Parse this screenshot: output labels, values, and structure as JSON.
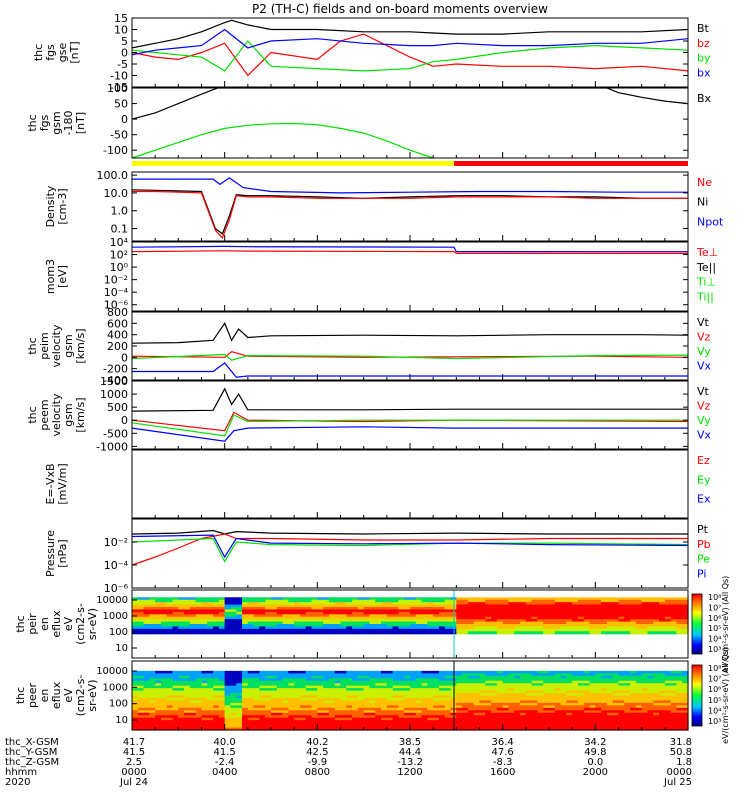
{
  "title": "P2 (TH-C) fields and on-board moments overview",
  "colors": {
    "black": "#000000",
    "red": "#ff0000",
    "green": "#00e000",
    "blue": "#0000ff",
    "yellow": "#ffff00",
    "cyan": "#00c8c8"
  },
  "chart_data": [
    {
      "type": "line",
      "id": "fgs",
      "ylabel": [
        "thc",
        "fgs",
        "gse",
        "[nT]"
      ],
      "ylim": [
        -15,
        15
      ],
      "ticks": [
        15,
        10,
        5,
        0,
        -5,
        -10,
        -15
      ],
      "legend": [
        {
          "name": "Bt",
          "color": "#000000"
        },
        {
          "name": "bz",
          "color": "#ff0000"
        },
        {
          "name": "by",
          "color": "#00e000"
        },
        {
          "name": "bx",
          "color": "#0000ff"
        }
      ],
      "series": [
        {
          "name": "Bt",
          "x": [
            0,
            1,
            2,
            3,
            4,
            4.3,
            5,
            6,
            8,
            10,
            12,
            13,
            14,
            16,
            18,
            20,
            22,
            24
          ],
          "y": [
            2,
            4,
            6,
            9,
            13,
            14,
            12,
            10,
            10,
            9,
            9,
            8.5,
            8,
            8,
            9,
            9,
            9,
            10
          ]
        },
        {
          "name": "bz",
          "x": [
            0,
            1,
            2,
            3,
            4,
            5,
            6,
            8,
            9,
            10,
            12,
            13,
            14,
            16,
            18,
            20,
            22,
            24
          ],
          "y": [
            0,
            -2,
            -3,
            0,
            4,
            -10,
            0,
            -3,
            5,
            8,
            -2,
            -6,
            -5,
            -6,
            -6,
            -7,
            -6,
            -8
          ]
        },
        {
          "name": "by",
          "x": [
            0,
            1,
            2,
            3,
            4,
            5,
            6,
            8,
            10,
            12,
            13,
            14,
            16,
            18,
            20,
            22,
            24
          ],
          "y": [
            1,
            0,
            -1,
            -2,
            -8,
            5,
            -6,
            -7,
            -8,
            -7,
            -4,
            -3,
            0,
            2,
            3,
            2,
            1
          ]
        },
        {
          "name": "bx",
          "x": [
            0,
            1,
            2,
            3,
            4,
            5,
            6,
            8,
            10,
            12,
            13,
            14,
            16,
            18,
            20,
            22,
            24
          ],
          "y": [
            -1,
            1,
            2,
            3,
            10,
            2,
            5,
            6,
            4,
            3,
            3,
            4,
            3,
            3,
            4,
            4,
            6
          ]
        }
      ]
    },
    {
      "type": "line",
      "id": "fgs_gsm",
      "ylabel": [
        "thc",
        "fgs",
        "gsm",
        "-180",
        "[nT]"
      ],
      "ylim": [
        -125,
        100
      ],
      "ticks": [
        100,
        50,
        0,
        -50,
        -100
      ],
      "legend": [
        {
          "name": "Bx",
          "color": "#000000"
        }
      ],
      "series": [
        {
          "name": "Bx",
          "x": [
            0,
            1,
            2,
            3,
            3.7,
            20.5,
            21,
            22,
            23,
            24
          ],
          "y": [
            0,
            20,
            50,
            80,
            100,
            100,
            85,
            70,
            58,
            50
          ]
        },
        {
          "name": "By",
          "x": [
            0,
            1,
            2,
            3,
            4,
            5,
            6,
            7,
            8,
            9,
            10,
            11,
            12,
            13
          ],
          "y": [
            -125,
            -100,
            -75,
            -50,
            -30,
            -20,
            -15,
            -14,
            -18,
            -30,
            -45,
            -70,
            -100,
            -125
          ]
        }
      ]
    },
    {
      "type": "line",
      "id": "density",
      "ylabel": [
        "Density",
        "[cm-3]"
      ],
      "log": true,
      "ylim": [
        0.02,
        150
      ],
      "ticks": [
        "100.0",
        "10.0",
        "1.0",
        "0.1"
      ],
      "tick_values": [
        100,
        10,
        1,
        0.1
      ],
      "legend": [
        {
          "name": "Ne",
          "color": "#ff0000"
        },
        {
          "name": "Ni",
          "color": "#000000"
        },
        {
          "name": "Npot",
          "color": "#0000ff"
        }
      ],
      "series": [
        {
          "name": "Npot",
          "x": [
            0,
            2,
            3.5,
            3.8,
            4.2,
            4.8,
            6,
            9,
            12,
            15,
            18,
            21,
            24
          ],
          "y": [
            60,
            60,
            60,
            30,
            70,
            20,
            12,
            10,
            11,
            12,
            12,
            11,
            11
          ]
        },
        {
          "name": "Ni",
          "x": [
            0,
            1,
            2,
            3,
            3.6,
            3.9,
            4.2,
            4.5,
            5,
            6,
            8,
            10,
            12,
            14,
            16,
            18,
            20,
            22,
            24
          ],
          "y": [
            15,
            14,
            13,
            12,
            0.1,
            0.05,
            0.5,
            8,
            7,
            7,
            6,
            5,
            6,
            7,
            7,
            6,
            6,
            5,
            5
          ]
        },
        {
          "name": "Ne",
          "x": [
            0,
            1,
            2,
            3,
            3.6,
            3.9,
            4.2,
            4.5,
            5,
            6,
            8,
            10,
            12,
            14,
            16,
            18,
            20,
            22,
            24
          ],
          "y": [
            12,
            12,
            11,
            10,
            0.08,
            0.03,
            0.3,
            7,
            6,
            6,
            5,
            5,
            5,
            6,
            6,
            6,
            5,
            5,
            5
          ]
        }
      ]
    },
    {
      "type": "line",
      "id": "moms",
      "ylabel": [
        "mom3",
        "[eV]"
      ],
      "log": true,
      "ylim": [
        1e-07,
        10000
      ],
      "ticks": [
        "10⁴",
        "10²",
        "10⁰",
        "10⁻²",
        "10⁻⁴",
        "10⁻⁶"
      ],
      "tick_values": [
        10000,
        100,
        1,
        0.01,
        0.0001,
        1e-06
      ],
      "legend": [
        {
          "name": "Te⊥",
          "color": "#ff0000"
        },
        {
          "name": "Te||",
          "color": "#000000"
        },
        {
          "name": "Ti⊥",
          "color": "#00e000"
        },
        {
          "name": "Ti||",
          "color": "#00e000"
        }
      ],
      "series": [
        {
          "name": "Ti",
          "x": [
            0,
            4,
            5,
            13.9,
            14,
            24
          ],
          "y": [
            1500,
            2000,
            1800,
            1500,
            300,
            280
          ]
        },
        {
          "name": "Te",
          "x": [
            0,
            4,
            5,
            13.9,
            14,
            24
          ],
          "y": [
            300,
            400,
            350,
            300,
            150,
            150
          ]
        }
      ]
    },
    {
      "type": "line",
      "id": "peim",
      "ylabel": [
        "thc",
        "peim",
        "velocity",
        "gsm",
        "[km/s]"
      ],
      "ylim": [
        -400,
        800
      ],
      "ticks": [
        800,
        600,
        400,
        200,
        0,
        -200,
        -400
      ],
      "legend": [
        {
          "name": "Vt",
          "color": "#000000"
        },
        {
          "name": "Vz",
          "color": "#ff0000"
        },
        {
          "name": "Vy",
          "color": "#00e000"
        },
        {
          "name": "Vx",
          "color": "#0000ff"
        }
      ],
      "series": [
        {
          "name": "Vt",
          "x": [
            0,
            2,
            3.5,
            4,
            4.3,
            4.6,
            5,
            6,
            10,
            14,
            18,
            22,
            24
          ],
          "y": [
            250,
            260,
            300,
            600,
            300,
            500,
            350,
            380,
            390,
            380,
            400,
            400,
            390
          ]
        },
        {
          "name": "Vz",
          "x": [
            0,
            4,
            4.3,
            5,
            10,
            14,
            20,
            24
          ],
          "y": [
            20,
            0,
            100,
            20,
            0,
            10,
            20,
            0
          ]
        },
        {
          "name": "Vy",
          "x": [
            0,
            4,
            4.3,
            5,
            10,
            14,
            20,
            24
          ],
          "y": [
            -20,
            50,
            -50,
            30,
            20,
            -20,
            30,
            40
          ]
        },
        {
          "name": "Vx",
          "x": [
            0,
            3.5,
            4,
            4.5,
            5,
            6,
            10,
            14,
            18,
            24
          ],
          "y": [
            -250,
            -250,
            -100,
            -350,
            -330,
            -330,
            -330,
            -330,
            -330,
            -330
          ]
        }
      ]
    },
    {
      "type": "line",
      "id": "peem",
      "ylabel": [
        "thc",
        "peem",
        "velocity",
        "gsm",
        "[km/s]"
      ],
      "ylim": [
        -1100,
        1500
      ],
      "ticks": [
        1500,
        1000,
        500,
        0,
        -500,
        -1000
      ],
      "legend": [
        {
          "name": "Vt",
          "color": "#000000"
        },
        {
          "name": "Vz",
          "color": "#ff0000"
        },
        {
          "name": "Vy",
          "color": "#00e000"
        },
        {
          "name": "Vx",
          "color": "#0000ff"
        }
      ],
      "series": [
        {
          "name": "Vt",
          "x": [
            0,
            3.5,
            4,
            4.3,
            4.6,
            5,
            10,
            14,
            18,
            24
          ],
          "y": [
            350,
            380,
            1200,
            600,
            1000,
            400,
            400,
            420,
            420,
            420
          ]
        },
        {
          "name": "Vz",
          "x": [
            0,
            4,
            4.4,
            5,
            10,
            14,
            24
          ],
          "y": [
            0,
            -400,
            300,
            0,
            -50,
            0,
            -50
          ]
        },
        {
          "name": "Vy",
          "x": [
            0,
            4,
            4.4,
            5,
            10,
            14,
            24
          ],
          "y": [
            -100,
            -600,
            200,
            -50,
            0,
            0,
            0
          ]
        },
        {
          "name": "Vx",
          "x": [
            0,
            4,
            4.4,
            5,
            10,
            14,
            24
          ],
          "y": [
            -300,
            -800,
            -400,
            -300,
            -250,
            -300,
            -300
          ]
        }
      ]
    },
    {
      "type": "line",
      "id": "efield",
      "ylabel": [
        "E=-VxB",
        "[mV/m]"
      ],
      "ylim": [
        0,
        1
      ],
      "ticks": [],
      "legend": [
        {
          "name": "Ez",
          "color": "#ff0000"
        },
        {
          "name": "Ey",
          "color": "#00e000"
        },
        {
          "name": "Ex",
          "color": "#0000ff"
        }
      ],
      "series": []
    },
    {
      "type": "line",
      "id": "pressure",
      "ylabel": [
        "Pressure",
        "[nPa]"
      ],
      "log": true,
      "ylim": [
        1e-06,
        1
      ],
      "ticks": [
        "10⁻²",
        "10⁻⁴",
        "10⁻⁶"
      ],
      "tick_values": [
        0.01,
        0.0001,
        1e-06
      ],
      "legend": [
        {
          "name": "Pt",
          "color": "#000000"
        },
        {
          "name": "Pb",
          "color": "#ff0000"
        },
        {
          "name": "Pe",
          "color": "#00e000"
        },
        {
          "name": "Pi",
          "color": "#0000ff"
        }
      ],
      "series": [
        {
          "name": "Pt",
          "x": [
            0,
            2,
            3.5,
            4,
            4.5,
            6,
            10,
            14,
            18,
            22,
            24
          ],
          "y": [
            0.05,
            0.06,
            0.1,
            0.05,
            0.08,
            0.06,
            0.05,
            0.06,
            0.05,
            0.05,
            0.05
          ]
        },
        {
          "name": "Pb",
          "x": [
            0,
            1,
            2,
            3,
            4,
            4.5,
            6,
            10,
            14,
            18,
            24
          ],
          "y": [
            0.0001,
            0.0005,
            0.003,
            0.02,
            0.05,
            0.02,
            0.02,
            0.015,
            0.015,
            0.02,
            0.02
          ]
        },
        {
          "name": "Pe",
          "x": [
            0,
            3.5,
            4,
            4.5,
            6,
            10,
            14,
            18,
            24
          ],
          "y": [
            0.01,
            0.02,
            0.0002,
            0.01,
            0.006,
            0.005,
            0.008,
            0.008,
            0.006
          ]
        },
        {
          "name": "Pi",
          "x": [
            0,
            3.5,
            4,
            4.5,
            6,
            10,
            14,
            18,
            24
          ],
          "y": [
            0.03,
            0.04,
            0.0005,
            0.02,
            0.008,
            0.007,
            0.008,
            0.006,
            0.005
          ]
        }
      ]
    },
    {
      "type": "heatmap",
      "id": "peir",
      "ylabel": [
        "thc",
        "peir",
        "en",
        "eflux",
        "eV",
        "(cm2-s-",
        "sr-eV)"
      ],
      "ticks": [
        "10000",
        "1000",
        "100",
        "10"
      ],
      "colorbar_ticks": [
        "10⁸",
        "10⁷",
        "10⁶",
        "10⁵",
        "10⁴",
        "10³"
      ],
      "colorbar_label": "eV/(cm²-s-sr-eV) (All Qs)"
    },
    {
      "type": "heatmap",
      "id": "peer",
      "ylabel": [
        "thc",
        "peer",
        "en",
        "eflux",
        "eV",
        "(cm2-s-",
        "sr-eV)"
      ],
      "ticks": [
        "10000",
        "1000",
        "100",
        "10"
      ],
      "colorbar_ticks": [
        "10⁸",
        "10⁷",
        "10⁶",
        "10⁵",
        "10⁴",
        "10³"
      ],
      "colorbar_label": "eV/(cm²-s-sr-eV) (All Qs)"
    }
  ],
  "time_axis": {
    "rows": [
      {
        "label": "thc_X-GSM",
        "values": [
          "41.7",
          "40.0",
          "40.2",
          "38.5",
          "36.4",
          "34.2",
          "31.8"
        ]
      },
      {
        "label": "thc_Y-GSM",
        "values": [
          "41.5",
          "41.5",
          "42.5",
          "44.4",
          "47.6",
          "49.8",
          "50.8"
        ]
      },
      {
        "label": "thc_Z-GSM",
        "values": [
          "2.5",
          "-2.4",
          "-9.9",
          "-13.2",
          "-8.3",
          "0.0",
          "1.8"
        ]
      },
      {
        "label": "hhmm",
        "values": [
          "0000",
          "0400",
          "0800",
          "1200",
          "1600",
          "2000",
          "0000"
        ]
      },
      {
        "label": "2020",
        "values": [
          "Jul 24",
          "",
          "",
          "",
          "",
          "",
          "Jul 25"
        ]
      }
    ]
  }
}
